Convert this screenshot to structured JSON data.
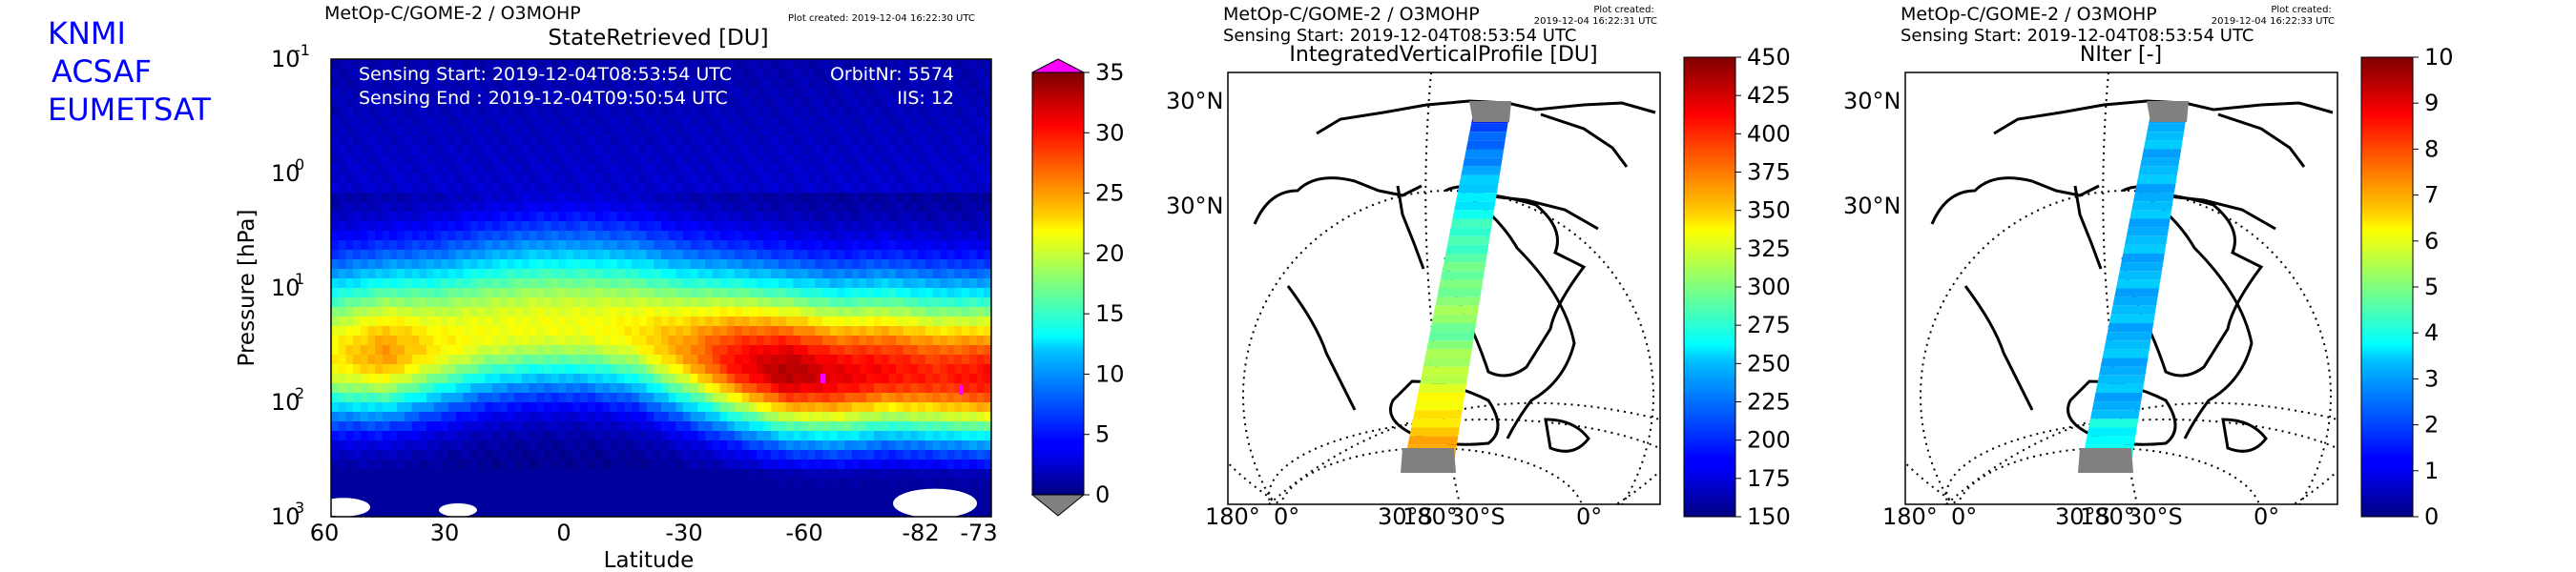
{
  "brand": [
    "KNMI",
    "ACSAF",
    "EUMETSAT"
  ],
  "brand_color": "#0000ff",
  "chart_data": [
    {
      "type": "heatmap",
      "header": "MetOp-C/GOME-2 / O3MOHP",
      "plot_created": "Plot created: 2019-12-04 16:22:30 UTC",
      "title": "StateRetrieved [DU]",
      "xlabel": "Latitude",
      "ylabel": "Pressure [hPa]",
      "y_scale": "log",
      "ylim": [
        1000,
        0.1
      ],
      "x_ticks": [
        "60",
        "30",
        "0",
        "-30",
        "-60",
        "-82",
        "-73"
      ],
      "y_ticks": [
        "10-1",
        "100",
        "101",
        "102",
        "103"
      ],
      "annotations": {
        "sensing_start": "Sensing Start: 2019-12-04T08:53:54 UTC",
        "sensing_end": "Sensing End  : 2019-12-04T09:50:54 UTC",
        "orbit": "OrbitNr: 5574",
        "iis": "IIS: 12"
      },
      "colorbar": {
        "min": 0,
        "max": 35,
        "ticks": [
          "0",
          "5",
          "10",
          "15",
          "20",
          "25",
          "30",
          "35"
        ],
        "extend": "both",
        "over_color": "#ff00ff",
        "under_color": "#808080"
      },
      "profile": {
        "lat_nodes": [
          60,
          45,
          30,
          15,
          0,
          -15,
          -30,
          -45,
          -55,
          -62,
          -68,
          -75,
          -82,
          -73
        ],
        "peak_pressure_hpa": [
          40,
          38,
          32,
          25,
          22,
          22,
          25,
          35,
          45,
          55,
          60,
          55,
          60,
          62
        ],
        "peak_value_du": [
          22,
          25,
          22,
          21,
          21,
          21,
          22,
          25,
          30,
          33,
          31,
          30,
          29,
          30
        ]
      }
    },
    {
      "type": "map",
      "header": "MetOp-C/GOME-2 / O3MOHP",
      "sensing_start": "Sensing Start: 2019-12-04T08:53:54 UTC",
      "plot_created": "Plot created:\n2019-12-04 16:22:31 UTC",
      "title": "IntegratedVerticalProfile [DU]",
      "lat_labels": [
        "30°N",
        "30°N"
      ],
      "lon_labels": [
        "180°",
        "0°",
        "30°S",
        "180°",
        "30°S",
        "0°"
      ],
      "colorbar": {
        "min": 150,
        "max": 450,
        "ticks": [
          "150",
          "175",
          "200",
          "225",
          "250",
          "275",
          "300",
          "325",
          "350",
          "375",
          "400",
          "425",
          "450"
        ]
      }
    },
    {
      "type": "map",
      "header": "MetOp-C/GOME-2 / O3MOHP",
      "sensing_start": "Sensing Start: 2019-12-04T08:53:54 UTC",
      "plot_created": "Plot created:\n2019-12-04 16:22:33 UTC",
      "title": "NIter [-]",
      "lat_labels": [
        "30°N",
        "30°N"
      ],
      "lon_labels": [
        "180°",
        "0°",
        "30°S",
        "180°",
        "30°S",
        "0°"
      ],
      "colorbar": {
        "min": 0,
        "max": 10,
        "ticks": [
          "0",
          "1",
          "2",
          "3",
          "4",
          "5",
          "6",
          "7",
          "8",
          "9",
          "10"
        ]
      }
    }
  ]
}
